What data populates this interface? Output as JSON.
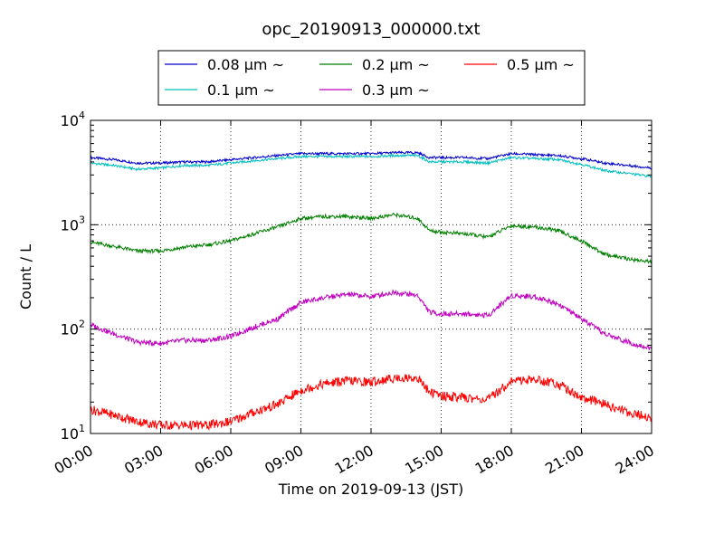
{
  "chart_data": {
    "type": "line",
    "title": "opc_20190913_000000.txt",
    "xlabel": "Time on 2019-09-13 (JST)",
    "ylabel": "Count / L",
    "x_ticks": [
      "00:00",
      "03:00",
      "06:00",
      "09:00",
      "12:00",
      "15:00",
      "18:00",
      "21:00",
      "24:00"
    ],
    "x_tick_hours": [
      0,
      3,
      6,
      9,
      12,
      15,
      18,
      21,
      24
    ],
    "xlim_hours": [
      0,
      24
    ],
    "y_scale": "log",
    "ylim": [
      10,
      10000
    ],
    "y_ticks": [
      {
        "value": 10,
        "base": "10",
        "exp": "1"
      },
      {
        "value": 100,
        "base": "10",
        "exp": "2"
      },
      {
        "value": 1000,
        "base": "10",
        "exp": "3"
      },
      {
        "value": 10000,
        "base": "10",
        "exp": "4"
      }
    ],
    "grid": true,
    "legend_position": "top",
    "series": [
      {
        "name": "0.08 μm ~",
        "color": "#0000cc",
        "x_hours": [
          0,
          1,
          2,
          3,
          4,
          5,
          6,
          7,
          8,
          9,
          10,
          11,
          12,
          13,
          14,
          14.5,
          15,
          16,
          17,
          18,
          19,
          20,
          21,
          22,
          23,
          24
        ],
        "values": [
          4400,
          4200,
          3900,
          3900,
          4000,
          4000,
          4200,
          4400,
          4600,
          4800,
          4800,
          4800,
          4800,
          4900,
          4900,
          4400,
          4400,
          4400,
          4300,
          4800,
          4700,
          4600,
          4300,
          3900,
          3700,
          3500
        ]
      },
      {
        "name": "0.1 μm ~",
        "color": "#00bfbf",
        "x_hours": [
          0,
          1,
          2,
          3,
          4,
          5,
          6,
          7,
          8,
          9,
          10,
          11,
          12,
          13,
          14,
          14.5,
          15,
          16,
          17,
          18,
          19,
          20,
          21,
          22,
          23,
          24
        ],
        "values": [
          3900,
          3700,
          3400,
          3500,
          3700,
          3700,
          3900,
          4100,
          4300,
          4500,
          4500,
          4500,
          4500,
          4600,
          4600,
          4000,
          4000,
          4000,
          3900,
          4400,
          4300,
          4200,
          3800,
          3300,
          3100,
          2900
        ]
      },
      {
        "name": "0.2 μm ~",
        "color": "#007f00",
        "x_hours": [
          0,
          1,
          2,
          3,
          4,
          5,
          6,
          7,
          8,
          9,
          10,
          11,
          12,
          13,
          14,
          14.5,
          15,
          16,
          17,
          18,
          19,
          20,
          21,
          22,
          23,
          24
        ],
        "values": [
          680,
          620,
          560,
          560,
          610,
          640,
          700,
          820,
          950,
          1150,
          1200,
          1200,
          1150,
          1250,
          1150,
          880,
          850,
          820,
          760,
          980,
          950,
          880,
          700,
          520,
          470,
          440
        ]
      },
      {
        "name": "0.3 μm ~",
        "color": "#bf00bf",
        "x_hours": [
          0,
          1,
          2,
          3,
          4,
          5,
          6,
          7,
          8,
          9,
          10,
          11,
          12,
          13,
          14,
          14.5,
          15,
          16,
          17,
          18,
          19,
          20,
          21,
          22,
          23,
          24
        ],
        "values": [
          110,
          90,
          75,
          73,
          78,
          78,
          85,
          105,
          125,
          180,
          200,
          215,
          205,
          225,
          210,
          145,
          140,
          140,
          135,
          210,
          205,
          175,
          125,
          90,
          75,
          65
        ]
      },
      {
        "name": "0.5 μm ~",
        "color": "#ff0000",
        "x_hours": [
          0,
          1,
          2,
          3,
          4,
          5,
          6,
          7,
          8,
          9,
          10,
          11,
          12,
          13,
          14,
          14.5,
          15,
          16,
          17,
          18,
          19,
          20,
          21,
          22,
          23,
          24
        ],
        "values": [
          17,
          15,
          13,
          12,
          12,
          12,
          13,
          16,
          19,
          26,
          30,
          32,
          31,
          34,
          34,
          25,
          23,
          22,
          21,
          32,
          33,
          30,
          22,
          19,
          16,
          14
        ]
      }
    ]
  }
}
